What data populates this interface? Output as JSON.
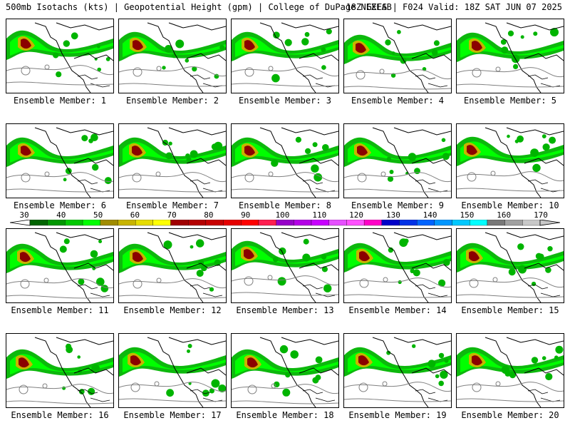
{
  "header": {
    "title_left": "500mb Isotachs (kts) | Geopotential Height (gpm) | College of DuPage NEXLAB",
    "title_right": "18Z GEFS | F024 Valid: 18Z SAT JUN 07 2025"
  },
  "members": [
    {
      "label": "Ensemble Member: 1"
    },
    {
      "label": "Ensemble Member: 2"
    },
    {
      "label": "Ensemble Member: 3"
    },
    {
      "label": "Ensemble Member: 4"
    },
    {
      "label": "Ensemble Member: 5"
    },
    {
      "label": "Ensemble Member: 6"
    },
    {
      "label": "Ensemble Member: 7"
    },
    {
      "label": "Ensemble Member: 8"
    },
    {
      "label": "Ensemble Member: 9"
    },
    {
      "label": "Ensemble Member: 10"
    },
    {
      "label": "Ensemble Member: 11"
    },
    {
      "label": "Ensemble Member: 12"
    },
    {
      "label": "Ensemble Member: 13"
    },
    {
      "label": "Ensemble Member: 14"
    },
    {
      "label": "Ensemble Member: 15"
    },
    {
      "label": "Ensemble Member: 16"
    },
    {
      "label": "Ensemble Member: 17"
    },
    {
      "label": "Ensemble Member: 18"
    },
    {
      "label": "Ensemble Member: 19"
    },
    {
      "label": "Ensemble Member: 20"
    }
  ],
  "colorbar": {
    "labels": [
      "30",
      "40",
      "50",
      "60",
      "70",
      "80",
      "90",
      "100",
      "110",
      "120",
      "130",
      "140",
      "150",
      "160",
      "170"
    ],
    "colors": [
      "#006400",
      "#009600",
      "#00c800",
      "#00ff00",
      "#a08c00",
      "#c8b400",
      "#e6dc00",
      "#ffff00",
      "#a00000",
      "#b40000",
      "#c80000",
      "#e60000",
      "#ff0000",
      "#ff1e50",
      "#9600c8",
      "#b400e6",
      "#c800ff",
      "#e650ff",
      "#ff50ff",
      "#ff00c8",
      "#0000c8",
      "#0032e6",
      "#0064ff",
      "#0096ff",
      "#00c8ff",
      "#00ffff",
      "#787878",
      "#a0a0a0",
      "#c8c8c8"
    ]
  },
  "map_colors": {
    "jet_low": "#00b400",
    "jet_mid": "#00ff00",
    "jet_core1": "#c8b400",
    "jet_core2": "#8b0000",
    "contour": "#808080",
    "coast": "#000000"
  }
}
